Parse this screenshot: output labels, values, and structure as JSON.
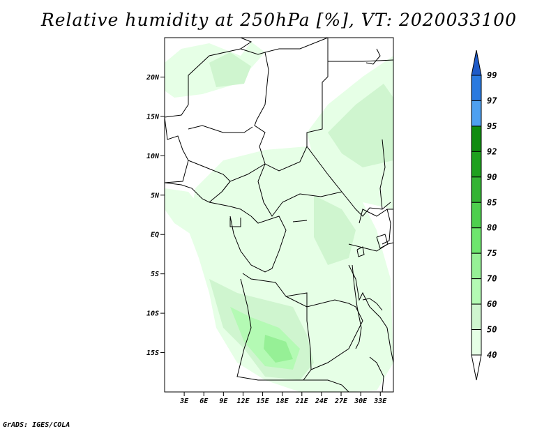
{
  "title": "Relative humidity at 250hPa [%], VT: 2020033100",
  "footer": "GrADS: IGES/COLA",
  "map": {
    "lon_range": [
      0,
      35
    ],
    "lat_range": [
      -20,
      25
    ],
    "lat_ticks": [
      {
        "value": 20,
        "label": "20N"
      },
      {
        "value": 15,
        "label": "15N"
      },
      {
        "value": 10,
        "label": "10N"
      },
      {
        "value": 5,
        "label": "5N"
      },
      {
        "value": 0,
        "label": "EQ"
      },
      {
        "value": -5,
        "label": "5S"
      },
      {
        "value": -10,
        "label": "10S"
      },
      {
        "value": -15,
        "label": "15S"
      }
    ],
    "lon_ticks": [
      {
        "value": 3,
        "label": "3E"
      },
      {
        "value": 6,
        "label": "6E"
      },
      {
        "value": 9,
        "label": "9E"
      },
      {
        "value": 12,
        "label": "12E"
      },
      {
        "value": 15,
        "label": "15E"
      },
      {
        "value": 18,
        "label": "18E"
      },
      {
        "value": 21,
        "label": "21E"
      },
      {
        "value": 24,
        "label": "24E"
      },
      {
        "value": 27,
        "label": "27E"
      },
      {
        "value": 30,
        "label": "30E"
      },
      {
        "value": 33,
        "label": "33E"
      }
    ]
  },
  "colorbar": {
    "levels": [
      "99",
      "97",
      "95",
      "92",
      "90",
      "85",
      "80",
      "75",
      "70",
      "60",
      "50",
      "40"
    ],
    "colors": [
      "#1e5ac8",
      "#2a7ae0",
      "#4ea0f0",
      "#0f8c0f",
      "#1ea01e",
      "#34b434",
      "#4ecf4e",
      "#6ee66e",
      "#96f096",
      "#b4fab4",
      "#cff5cf",
      "#e6ffe6",
      "#ffffff"
    ]
  }
}
